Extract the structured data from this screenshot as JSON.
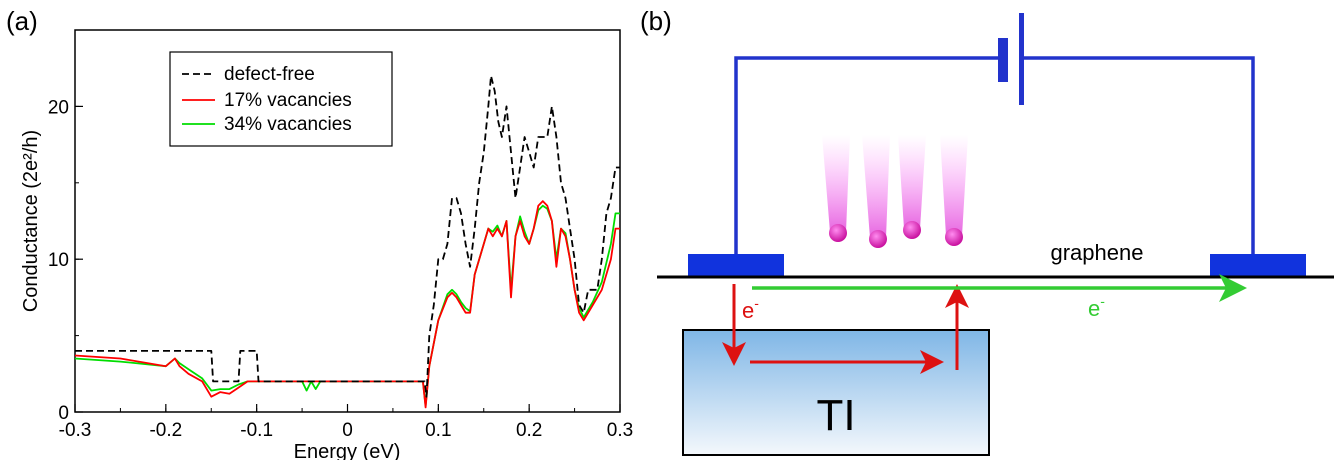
{
  "chart_data": [
    {
      "panel": "(a)",
      "type": "line",
      "xlabel": "Energy (eV)",
      "ylabel": "Conductance (2e²/h)",
      "xlim": [
        -0.3,
        0.3
      ],
      "ylim": [
        0,
        25
      ],
      "x_ticks": [
        "-0.3",
        "-0.2",
        "-0.1",
        "0",
        "0.1",
        "0.2",
        "0.3"
      ],
      "y_ticks": [
        "0",
        "10",
        "20"
      ],
      "legend_position": "top-center",
      "series": [
        {
          "name": "defect-free",
          "color": "#000000",
          "style": "dashed",
          "points": [
            [
              -0.3,
              4
            ],
            [
              -0.15,
              4
            ],
            [
              -0.148,
              2
            ],
            [
              -0.12,
              2
            ],
            [
              -0.118,
              4
            ],
            [
              -0.1,
              4
            ],
            [
              -0.098,
              2
            ],
            [
              0.085,
              2
            ],
            [
              0.087,
              1
            ],
            [
              0.09,
              5
            ],
            [
              0.095,
              7
            ],
            [
              0.1,
              10
            ],
            [
              0.105,
              10
            ],
            [
              0.11,
              11
            ],
            [
              0.115,
              14
            ],
            [
              0.12,
              14
            ],
            [
              0.125,
              13
            ],
            [
              0.13,
              11
            ],
            [
              0.135,
              9.5
            ],
            [
              0.14,
              12
            ],
            [
              0.145,
              15
            ],
            [
              0.15,
              17
            ],
            [
              0.155,
              20
            ],
            [
              0.158,
              22
            ],
            [
              0.162,
              21
            ],
            [
              0.166,
              19
            ],
            [
              0.17,
              18
            ],
            [
              0.175,
              20
            ],
            [
              0.18,
              17
            ],
            [
              0.185,
              14
            ],
            [
              0.19,
              16
            ],
            [
              0.195,
              18
            ],
            [
              0.2,
              17
            ],
            [
              0.205,
              16
            ],
            [
              0.21,
              18
            ],
            [
              0.215,
              18
            ],
            [
              0.22,
              18
            ],
            [
              0.225,
              20
            ],
            [
              0.23,
              18
            ],
            [
              0.235,
              15
            ],
            [
              0.24,
              14
            ],
            [
              0.245,
              12
            ],
            [
              0.25,
              10
            ],
            [
              0.255,
              7
            ],
            [
              0.26,
              6.5
            ],
            [
              0.265,
              8
            ],
            [
              0.27,
              8
            ],
            [
              0.275,
              8
            ],
            [
              0.28,
              10
            ],
            [
              0.285,
              13
            ],
            [
              0.29,
              14
            ],
            [
              0.295,
              16
            ],
            [
              0.3,
              16
            ]
          ]
        },
        {
          "name": "17% vacancies",
          "color": "#ff0000",
          "style": "solid",
          "points": [
            [
              -0.3,
              3.7
            ],
            [
              -0.25,
              3.5
            ],
            [
              -0.2,
              3
            ],
            [
              -0.19,
              3.5
            ],
            [
              -0.185,
              3
            ],
            [
              -0.175,
              2.5
            ],
            [
              -0.16,
              2
            ],
            [
              -0.15,
              1
            ],
            [
              -0.14,
              1.3
            ],
            [
              -0.13,
              1.2
            ],
            [
              -0.12,
              1.6
            ],
            [
              -0.11,
              2
            ],
            [
              -0.1,
              2
            ],
            [
              0,
              2
            ],
            [
              0.083,
              2
            ],
            [
              0.086,
              0.3
            ],
            [
              0.09,
              3
            ],
            [
              0.1,
              6
            ],
            [
              0.11,
              7.5
            ],
            [
              0.115,
              7.8
            ],
            [
              0.12,
              7.5
            ],
            [
              0.125,
              7
            ],
            [
              0.13,
              6.5
            ],
            [
              0.135,
              6.5
            ],
            [
              0.14,
              9
            ],
            [
              0.15,
              11
            ],
            [
              0.155,
              12
            ],
            [
              0.16,
              11.5
            ],
            [
              0.165,
              12
            ],
            [
              0.17,
              11.5
            ],
            [
              0.175,
              12.5
            ],
            [
              0.18,
              7.5
            ],
            [
              0.185,
              11.5
            ],
            [
              0.19,
              12.5
            ],
            [
              0.195,
              11.5
            ],
            [
              0.2,
              11
            ],
            [
              0.205,
              12
            ],
            [
              0.21,
              13.5
            ],
            [
              0.215,
              13.8
            ],
            [
              0.22,
              13.5
            ],
            [
              0.225,
              12.5
            ],
            [
              0.23,
              9.5
            ],
            [
              0.235,
              12
            ],
            [
              0.24,
              11.5
            ],
            [
              0.245,
              10
            ],
            [
              0.25,
              8
            ],
            [
              0.255,
              6.5
            ],
            [
              0.26,
              6
            ],
            [
              0.27,
              7
            ],
            [
              0.28,
              8
            ],
            [
              0.29,
              10
            ],
            [
              0.295,
              12
            ],
            [
              0.3,
              12
            ]
          ]
        },
        {
          "name": "34% vacancies",
          "color": "#00dd00",
          "style": "solid",
          "points": [
            [
              -0.3,
              3.5
            ],
            [
              -0.25,
              3.3
            ],
            [
              -0.2,
              3
            ],
            [
              -0.19,
              3.5
            ],
            [
              -0.185,
              3.2
            ],
            [
              -0.175,
              2.8
            ],
            [
              -0.16,
              2.2
            ],
            [
              -0.15,
              1.4
            ],
            [
              -0.14,
              1.5
            ],
            [
              -0.13,
              1.5
            ],
            [
              -0.12,
              1.8
            ],
            [
              -0.11,
              2
            ],
            [
              -0.1,
              2
            ],
            [
              -0.05,
              2
            ],
            [
              -0.045,
              1.4
            ],
            [
              -0.04,
              2
            ],
            [
              -0.035,
              1.5
            ],
            [
              -0.03,
              2
            ],
            [
              0,
              2
            ],
            [
              0.083,
              2
            ],
            [
              0.086,
              0.4
            ],
            [
              0.09,
              3
            ],
            [
              0.1,
              6
            ],
            [
              0.11,
              7.7
            ],
            [
              0.115,
              8
            ],
            [
              0.12,
              7.7
            ],
            [
              0.125,
              7.2
            ],
            [
              0.13,
              6.8
            ],
            [
              0.135,
              6.6
            ],
            [
              0.14,
              9
            ],
            [
              0.15,
              11
            ],
            [
              0.155,
              12
            ],
            [
              0.16,
              11.8
            ],
            [
              0.165,
              12.2
            ],
            [
              0.17,
              11.5
            ],
            [
              0.175,
              12.5
            ],
            [
              0.18,
              8
            ],
            [
              0.185,
              11.5
            ],
            [
              0.19,
              12.8
            ],
            [
              0.195,
              11.8
            ],
            [
              0.2,
              11
            ],
            [
              0.205,
              12
            ],
            [
              0.21,
              13.2
            ],
            [
              0.215,
              13.5
            ],
            [
              0.22,
              13.3
            ],
            [
              0.225,
              12.5
            ],
            [
              0.23,
              10
            ],
            [
              0.235,
              12
            ],
            [
              0.24,
              11.7
            ],
            [
              0.245,
              10
            ],
            [
              0.25,
              8
            ],
            [
              0.255,
              6.8
            ],
            [
              0.26,
              6.2
            ],
            [
              0.27,
              7.2
            ],
            [
              0.28,
              8.5
            ],
            [
              0.29,
              11
            ],
            [
              0.295,
              13
            ],
            [
              0.3,
              13
            ]
          ]
        }
      ]
    }
  ],
  "panel_b": {
    "label": "(b)",
    "graphene_label": "graphene",
    "ti_label": "TI",
    "electron_red": "e",
    "electron_green": "e",
    "electron_superscript": "-",
    "circuit_color": "#2233cc",
    "red_arrow_color": "#dd1111",
    "green_arrow_color": "#33cc33",
    "ion_color": "#dd22cc"
  }
}
